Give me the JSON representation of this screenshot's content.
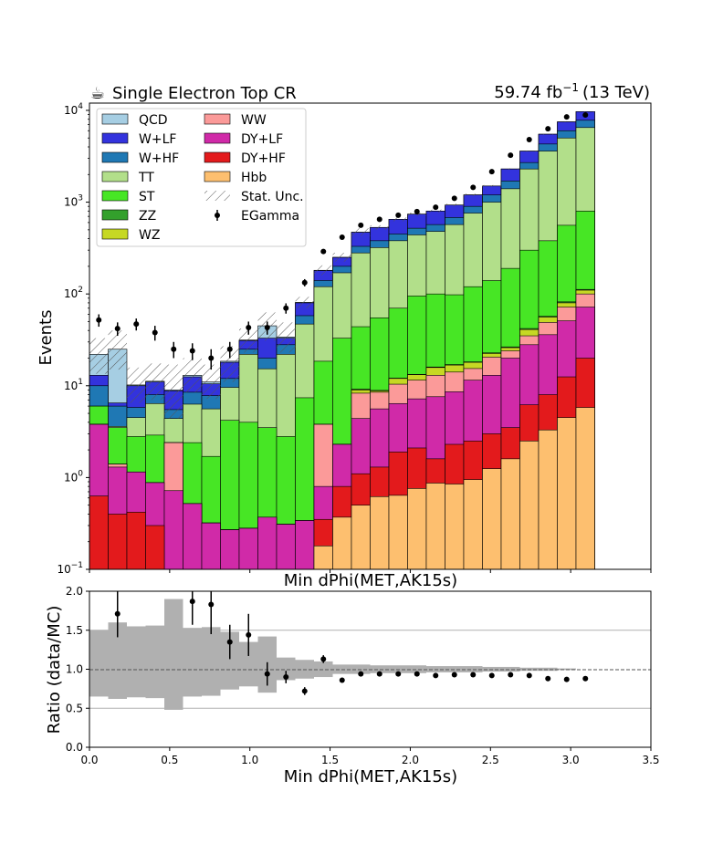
{
  "chart_data": [
    {
      "type": "area",
      "title": "Single Electron Top CR",
      "title_icon": "coffee-icon",
      "lumi_label": "59.74 fb",
      "lumi_exponent": "−1",
      "lumi_energy": "(13 TeV)",
      "xlabel": "Min dPhi(MET,AK15s)",
      "ylabel": "Events",
      "yscale": "log",
      "ylim": [
        0.1,
        12000
      ],
      "xlim": [
        0,
        3.5
      ],
      "ytick_mantissa": "10",
      "ytick_exponents": [
        "−1",
        "0",
        "1",
        "2",
        "3",
        "4"
      ],
      "legend_position": "upper-left",
      "bin_edges": [
        0,
        0.1167,
        0.2333,
        0.35,
        0.4667,
        0.5833,
        0.7,
        0.8167,
        0.9333,
        1.05,
        1.1667,
        1.2833,
        1.4,
        1.5167,
        1.6333,
        1.75,
        1.8667,
        1.9833,
        2.1,
        2.2167,
        2.3333,
        2.45,
        2.5667,
        2.6833,
        2.8,
        2.9167,
        3.0333,
        3.15
      ],
      "stack_cumulative": [
        {
          "name": "Hbb",
          "color": "#fdbf6f",
          "values": [
            0,
            0,
            0,
            0,
            0,
            0,
            0,
            0,
            0,
            0,
            0,
            0,
            0.18,
            0.37,
            0.5,
            0.62,
            0.64,
            0.76,
            0.87,
            0.85,
            0.95,
            1.25,
            1.6,
            2.5,
            3.3,
            4.5,
            5.8,
            5.8
          ]
        },
        {
          "name": "DY+HF",
          "color": "#e31a1c",
          "values": [
            0.63,
            0.4,
            0.42,
            0.3,
            0,
            0,
            0,
            0,
            0,
            0,
            0,
            0,
            0.35,
            0.8,
            1.1,
            1.3,
            1.9,
            2.1,
            1.6,
            2.3,
            2.5,
            3.0,
            3.5,
            6.2,
            8.0,
            12.5,
            20.0,
            19.0
          ]
        },
        {
          "name": "DY+LF",
          "color": "#d02aa8",
          "values": [
            3.8,
            1.3,
            1.15,
            0.88,
            0.72,
            0.52,
            0.32,
            0.27,
            0.28,
            0.37,
            0.31,
            0.34,
            0.8,
            2.3,
            4.4,
            5.6,
            6.4,
            7.2,
            7.6,
            8.6,
            11.5,
            13.0,
            20.0,
            28.0,
            36.0,
            51.0,
            72.0,
            68.0
          ]
        },
        {
          "name": "WW",
          "color": "#fb9a99",
          "values": [
            3.8,
            1.4,
            1.15,
            0.88,
            2.4,
            0.52,
            0.32,
            0.27,
            0.28,
            0.37,
            0.31,
            0.34,
            3.8,
            2.3,
            8.3,
            8.5,
            10.4,
            11.5,
            13.0,
            14.1,
            15.4,
            20.5,
            24.0,
            35.0,
            49.0,
            72.0,
            100.0,
            140.0
          ]
        },
        {
          "name": "WZ",
          "color": "#c6d824",
          "values": [
            3.8,
            1.4,
            1.15,
            0.88,
            2.4,
            0.52,
            0.32,
            0.27,
            0.28,
            0.37,
            0.31,
            0.34,
            3.8,
            2.3,
            9.0,
            8.8,
            12.0,
            13.2,
            15.8,
            16.8,
            18.0,
            22.5,
            26.0,
            41.0,
            56.0,
            80.0,
            110.0,
            165.0
          ]
        },
        {
          "name": "ZZ",
          "color": "#33a02c",
          "values": [
            3.8,
            1.4,
            1.15,
            0.88,
            2.4,
            0.52,
            0.32,
            0.27,
            0.28,
            0.37,
            0.31,
            0.34,
            3.8,
            2.3,
            9.2,
            8.9,
            12.1,
            13.3,
            16.0,
            17.0,
            18.2,
            22.8,
            26.5,
            42.0,
            57.0,
            82.0,
            112.0,
            168.0
          ]
        },
        {
          "name": "ST",
          "color": "#47e625",
          "values": [
            6.0,
            3.5,
            2.8,
            2.9,
            2.4,
            2.4,
            1.7,
            4.2,
            4.0,
            3.5,
            2.8,
            7.4,
            18.5,
            33.0,
            44.0,
            55.0,
            70.0,
            95.0,
            100.0,
            98.0,
            120.0,
            140.0,
            190.0,
            300.0,
            380.0,
            560.0,
            800.0,
            900.0
          ]
        },
        {
          "name": "TT",
          "color": "#b2df8a",
          "values": [
            6.0,
            3.6,
            4.5,
            6.4,
            4.4,
            6.3,
            5.6,
            9.6,
            22.0,
            15.3,
            22.0,
            47.0,
            120.0,
            170.0,
            280.0,
            320.0,
            380.0,
            440.0,
            480.0,
            570.0,
            760.0,
            1000.0,
            1400.0,
            2300.0,
            3600.0,
            5000.0,
            6500.0,
            7000.0
          ]
        },
        {
          "name": "W+HF",
          "color": "#1f78b4",
          "values": [
            10.0,
            6.0,
            5.8,
            8.0,
            5.5,
            8.5,
            7.8,
            12.0,
            25.0,
            20.0,
            28.0,
            58.0,
            140.0,
            200.0,
            330.0,
            380.0,
            450.0,
            520.0,
            570.0,
            680.0,
            900.0,
            1200.0,
            1700.0,
            2700.0,
            4300.0,
            6000.0,
            7800.0,
            8400.0
          ]
        },
        {
          "name": "W+LF",
          "color": "#3333dd",
          "values": [
            13.0,
            6.5,
            10.0,
            11.0,
            8.8,
            12.5,
            10.5,
            18.0,
            31.0,
            33.0,
            33.0,
            80.0,
            180.0,
            250.0,
            470.0,
            530.0,
            650.0,
            740.0,
            800.0,
            930.0,
            1200.0,
            1500.0,
            2300.0,
            3600.0,
            5500.0,
            7500.0,
            9700.0,
            10500.0
          ]
        },
        {
          "name": "QCD",
          "color": "#a6cee3",
          "values": [
            22.0,
            25.0,
            10.2,
            11.2,
            9.0,
            13.0,
            11.0,
            18.5,
            31.5,
            45.0,
            34.0,
            81.0,
            181.0,
            251.0,
            471.0,
            531.0,
            651.0,
            741.0,
            801.0,
            931.0,
            1201.0,
            1501.0,
            2301.0,
            3601.0,
            5501.0,
            7501.0,
            9701.0,
            10501.0
          ]
        }
      ],
      "stat_unc_label": "Stat. Unc.",
      "stat_unc_band": {
        "up": [
          33.0,
          40.0,
          15.8,
          17.5,
          17.0,
          20.0,
          17.0,
          27.0,
          42.0,
          63.0,
          49.0,
          93.0,
          205.0,
          281.0,
          520.0,
          560.0,
          680.0,
          770.0,
          830.0,
          960.0,
          1235.0,
          1535.0,
          2340.0,
          3650.0,
          5540.0,
          7540.0,
          9740.0,
          10540.0
        ],
        "down": [
          13.5,
          15.0,
          6.5,
          7.0,
          4.4,
          8.5,
          7.2,
          11.0,
          23.0,
          31.0,
          23.0,
          70.0,
          160.0,
          225.0,
          430.0,
          500.0,
          620.0,
          710.0,
          770.0,
          900.0,
          1165.0,
          1465.0,
          2260.0,
          3550.0,
          5460.0,
          7460.0,
          9660.0,
          10460.0
        ]
      },
      "data_series": {
        "name": "EGamma",
        "x": [
          0.0583,
          0.175,
          0.2917,
          0.4083,
          0.525,
          0.6417,
          0.7583,
          0.875,
          0.9917,
          1.1083,
          1.225,
          1.3417,
          1.4583,
          1.575,
          1.6917,
          1.8083,
          1.925,
          2.0417,
          2.1583,
          2.275,
          2.3917,
          2.5083,
          2.625,
          2.7417,
          2.8583,
          2.975,
          3.0917
        ],
        "y": [
          52,
          42,
          47,
          38,
          25,
          24,
          20,
          25,
          43,
          43,
          70,
          133,
          290,
          415,
          560,
          650,
          720,
          790,
          880,
          1100,
          1450,
          2150,
          3250,
          4800,
          6300,
          8500,
          8900
        ],
        "yerr": [
          8,
          7,
          7,
          7,
          5,
          5,
          5,
          5,
          7,
          7,
          9,
          12,
          17,
          20,
          24,
          26,
          27,
          28,
          30,
          33,
          38,
          46,
          57,
          70,
          80,
          92,
          95
        ]
      }
    },
    {
      "type": "line",
      "xlabel": "Min dPhi(MET,AK15s)",
      "ylabel": "Ratio (data/MC)",
      "xlim": [
        0,
        3.5
      ],
      "ylim": [
        0,
        2
      ],
      "xticks": [
        "0.0",
        "0.5",
        "1.0",
        "1.5",
        "2.0",
        "2.5",
        "3.0",
        "3.5"
      ],
      "yticks": [
        "0.0",
        "0.5",
        "1.0",
        "1.5",
        "2.0"
      ],
      "reference_line": 1.0,
      "grid_lines": [
        0.5,
        1.0,
        1.5
      ],
      "unc_band": {
        "up": [
          1.5,
          1.6,
          1.55,
          1.56,
          1.9,
          1.53,
          1.54,
          1.48,
          1.35,
          1.42,
          1.15,
          1.12,
          1.1,
          1.06,
          1.06,
          1.05,
          1.05,
          1.05,
          1.04,
          1.04,
          1.04,
          1.03,
          1.03,
          1.02,
          1.02,
          1.01,
          1.0
        ],
        "down": [
          0.65,
          0.62,
          0.64,
          0.63,
          0.48,
          0.65,
          0.66,
          0.74,
          0.78,
          0.7,
          0.86,
          0.88,
          0.9,
          0.94,
          0.94,
          0.95,
          0.95,
          0.95,
          0.96,
          0.96,
          0.96,
          0.97,
          0.97,
          0.98,
          0.98,
          0.99,
          1.0
        ]
      },
      "points": {
        "x": [
          0.175,
          0.6417,
          0.7583,
          0.875,
          0.9917,
          1.1083,
          1.225,
          1.3417,
          1.4583,
          1.575,
          1.6917,
          1.8083,
          1.925,
          2.0417,
          2.1583,
          2.275,
          2.3917,
          2.5083,
          2.625,
          2.7417,
          2.8583,
          2.975,
          3.0917
        ],
        "y": [
          1.71,
          1.87,
          1.83,
          1.35,
          1.44,
          0.94,
          0.9,
          0.72,
          1.13,
          0.86,
          0.94,
          0.94,
          0.94,
          0.94,
          0.92,
          0.93,
          0.93,
          0.92,
          0.93,
          0.92,
          0.88,
          0.87,
          0.88
        ],
        "yerr": [
          0.3,
          0.3,
          0.38,
          0.22,
          0.27,
          0.15,
          0.08,
          0.05,
          0.05,
          0.03,
          0.02,
          0.02,
          0.02,
          0.02,
          0.02,
          0.02,
          0.02,
          0.02,
          0.02,
          0.02,
          0.02,
          0.02,
          0.02
        ]
      }
    }
  ]
}
